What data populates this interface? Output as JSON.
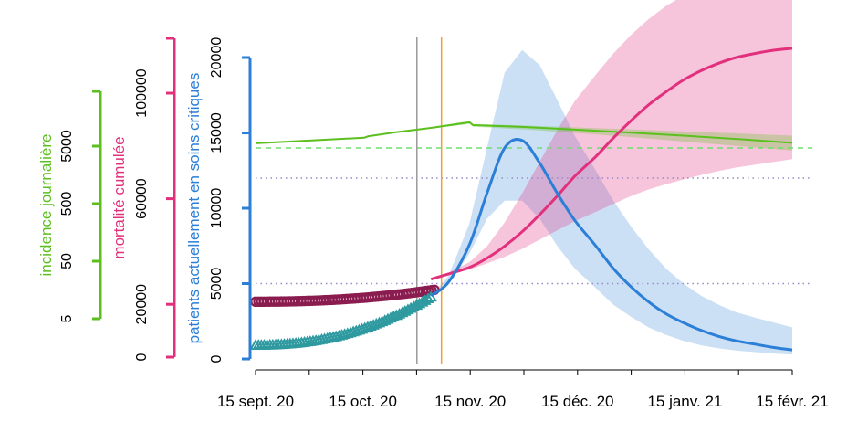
{
  "chart_data": {
    "type": "line",
    "title": "",
    "colors": {
      "incidence": "#5bbf1e",
      "mortality": "#e2307c",
      "critical": "#2b7fd6",
      "mortality_observed": "#8b1c4f",
      "critical_observed": "#2e9aa0",
      "vline_grey": "#9a9a9a",
      "vline_orange": "#f0a030",
      "threshold_green": "#6ee06e",
      "threshold_purple": "#9a8ac8"
    },
    "x_axis": {
      "tick_labels": [
        "15 sept. 20",
        "15 oct. 20",
        "15 nov. 20",
        "15 déc. 20",
        "15 janv. 21",
        "15 févr. 21"
      ],
      "range_days": [
        0,
        153
      ]
    },
    "y_axes": [
      {
        "id": "incidence",
        "label": "incidence journalière",
        "scale": "log",
        "ticks": [
          5,
          50,
          500,
          5000
        ],
        "tick_labels": [
          "5",
          "50",
          "500",
          "5000"
        ],
        "color": "#5bbf1e"
      },
      {
        "id": "mortality",
        "label": "mortalité cumulée",
        "ticks": [
          0,
          20000,
          60000,
          100000
        ],
        "tick_labels": [
          "0",
          "20000",
          "60000",
          "100000"
        ],
        "color": "#e2307c"
      },
      {
        "id": "critical",
        "label": "patients actuellement en soins critiques",
        "ticks": [
          0,
          5000,
          10000,
          15000,
          20000
        ],
        "tick_labels": [
          "0",
          "5000",
          "10000",
          "15000",
          "20000"
        ],
        "color": "#2b7fd6"
      }
    ],
    "reference_lines": {
      "vertical_days": [
        46,
        53
      ],
      "horizontal_critical": [
        5000,
        12000
      ],
      "horizontal_critical_green": 14000
    },
    "series": [
      {
        "id": "incidence",
        "axis": "incidence",
        "x": [
          0,
          16,
          31,
          32,
          40,
          50,
          61,
          62,
          76,
          91,
          107,
          122,
          138,
          153
        ],
        "y": [
          5600,
          6300,
          7000,
          7400,
          8700,
          10400,
          13000,
          11600,
          10800,
          9700,
          8600,
          7600,
          6600,
          5700
        ],
        "lower": [
          5600,
          6300,
          7000,
          7400,
          8650,
          10100,
          12100,
          10900,
          9800,
          8500,
          7200,
          6000,
          5000,
          4200
        ],
        "upper": [
          5600,
          6300,
          7000,
          7400,
          8750,
          10700,
          13800,
          12200,
          11500,
          10600,
          9800,
          9000,
          8300,
          7600
        ]
      },
      {
        "id": "mortality",
        "axis": "mortality",
        "x": [
          50,
          55,
          61,
          66,
          71,
          76,
          81,
          86,
          91,
          97,
          102,
          107,
          112,
          117,
          122,
          127,
          132,
          137,
          143,
          148,
          153
        ],
        "y": [
          29500,
          31500,
          34000,
          37500,
          42000,
          47500,
          54000,
          61000,
          68500,
          76000,
          83000,
          89500,
          95500,
          100500,
          105000,
          108500,
          111300,
          113500,
          115200,
          116300,
          117000
        ],
        "lower": [
          29500,
          31300,
          33200,
          35500,
          38000,
          41000,
          44500,
          48000,
          51500,
          55000,
          58000,
          61000,
          63500,
          65500,
          67300,
          69000,
          70500,
          71800,
          73000,
          74000,
          75000
        ],
        "upper": [
          29500,
          32000,
          36000,
          42000,
          51000,
          62000,
          74000,
          86000,
          97000,
          107000,
          115000,
          122000,
          128000,
          133000,
          137000,
          140000,
          142500,
          144500,
          146000,
          147200,
          148000
        ]
      },
      {
        "id": "critical",
        "axis": "critical",
        "x": [
          50,
          55,
          61,
          66,
          71,
          76,
          81,
          86,
          91,
          97,
          102,
          107,
          112,
          117,
          122,
          127,
          132,
          137,
          143,
          148,
          153
        ],
        "y": [
          4200,
          5100,
          7600,
          11000,
          14000,
          14500,
          13000,
          11000,
          9200,
          7500,
          6000,
          4800,
          3800,
          3000,
          2400,
          1900,
          1500,
          1200,
          950,
          750,
          600
        ],
        "lower": [
          4200,
          4900,
          7000,
          9300,
          10500,
          10500,
          9300,
          7500,
          6000,
          4700,
          3600,
          2800,
          2100,
          1600,
          1200,
          900,
          700,
          550,
          450,
          350,
          300
        ],
        "upper": [
          4200,
          5500,
          9000,
          14000,
          19000,
          20500,
          19500,
          17200,
          14800,
          12500,
          10500,
          8800,
          7300,
          6000,
          5000,
          4200,
          3600,
          3100,
          2700,
          2400,
          2100
        ]
      },
      {
        "id": "mortality_observed",
        "axis": "mortality",
        "marker": "circle",
        "x_range": [
          0,
          51
        ],
        "y_start": 21000,
        "y_end": 25500
      },
      {
        "id": "critical_observed",
        "axis": "critical",
        "marker": "triangle",
        "x_range": [
          0,
          50
        ],
        "y_start": 900,
        "y_end": 4100
      }
    ]
  }
}
